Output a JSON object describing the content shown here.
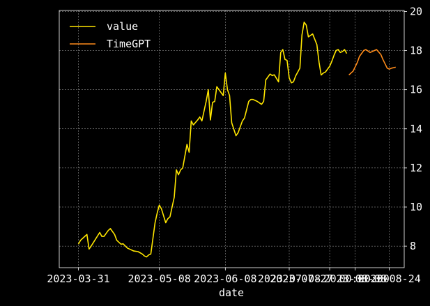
{
  "chart_data": {
    "type": "line",
    "title": "",
    "xlabel": "date",
    "ylabel": "",
    "xlim": [
      "2023-03-22",
      "2023-08-31"
    ],
    "ylim": [
      6.9,
      20.05
    ],
    "x_ticks": [
      "2023-03-31",
      "2023-05-08",
      "2023-06-08",
      "2023-07-08",
      "2023-07-27",
      "2023-08-08",
      "2023-08-24"
    ],
    "x_tick_labels": [
      "2023-03-31",
      "2023-05-08",
      "2023-06-08",
      "2023-07-08",
      "2023-07-27 00:00:00",
      "2023-08-08",
      "2023-08-24"
    ],
    "y_ticks": [
      8,
      10,
      12,
      14,
      16,
      18,
      20
    ],
    "grid": true,
    "legend_position": "top-left",
    "background": "#000000",
    "series": [
      {
        "name": "value",
        "color": "#ffe600",
        "x": [
          "2023-03-31",
          "2023-04-01",
          "2023-04-03",
          "2023-04-04",
          "2023-04-05",
          "2023-04-06",
          "2023-04-08",
          "2023-04-10",
          "2023-04-11",
          "2023-04-12",
          "2023-04-14",
          "2023-04-15",
          "2023-04-17",
          "2023-04-18",
          "2023-04-20",
          "2023-04-21",
          "2023-04-23",
          "2023-04-24",
          "2023-04-26",
          "2023-04-28",
          "2023-04-30",
          "2023-05-01",
          "2023-05-02",
          "2023-05-03",
          "2023-05-04",
          "2023-05-06",
          "2023-05-07",
          "2023-05-08",
          "2023-05-09",
          "2023-05-11",
          "2023-05-12",
          "2023-05-13",
          "2023-05-15",
          "2023-05-16",
          "2023-05-17",
          "2023-05-18",
          "2023-05-19",
          "2023-05-21",
          "2023-05-22",
          "2023-05-23",
          "2023-05-24",
          "2023-05-26",
          "2023-05-27",
          "2023-05-28",
          "2023-05-30",
          "2023-05-31",
          "2023-06-01",
          "2023-06-02",
          "2023-06-03",
          "2023-06-04",
          "2023-06-05",
          "2023-06-07",
          "2023-06-08",
          "2023-06-09",
          "2023-06-10",
          "2023-06-11",
          "2023-06-13",
          "2023-06-14",
          "2023-06-15",
          "2023-06-16",
          "2023-06-17",
          "2023-06-19",
          "2023-06-20",
          "2023-06-21",
          "2023-06-23",
          "2023-06-25",
          "2023-06-26",
          "2023-06-27",
          "2023-06-29",
          "2023-06-30",
          "2023-07-01",
          "2023-07-03",
          "2023-07-04",
          "2023-07-05",
          "2023-07-06",
          "2023-07-07",
          "2023-07-08",
          "2023-07-09",
          "2023-07-10",
          "2023-07-11",
          "2023-07-13",
          "2023-07-14",
          "2023-07-15",
          "2023-07-16",
          "2023-07-17",
          "2023-07-19",
          "2023-07-21",
          "2023-07-22",
          "2023-07-23",
          "2023-07-24",
          "2023-07-25",
          "2023-07-27",
          "2023-07-28",
          "2023-07-29",
          "2023-07-30",
          "2023-07-31",
          "2023-08-01",
          "2023-08-02",
          "2023-08-03",
          "2023-08-04"
        ],
        "y": [
          8.1,
          8.3,
          8.5,
          8.6,
          7.85,
          8.0,
          8.35,
          8.7,
          8.5,
          8.5,
          8.8,
          8.9,
          8.6,
          8.3,
          8.1,
          8.12,
          7.9,
          7.85,
          7.75,
          7.72,
          7.6,
          7.5,
          7.45,
          7.55,
          7.6,
          9.2,
          9.7,
          10.1,
          9.9,
          9.2,
          9.4,
          9.5,
          10.5,
          11.9,
          11.65,
          11.9,
          12.0,
          13.2,
          12.8,
          14.4,
          14.2,
          14.45,
          14.6,
          14.4,
          15.4,
          16.0,
          14.45,
          15.35,
          15.4,
          16.15,
          16.0,
          15.7,
          16.85,
          16.0,
          15.7,
          14.3,
          13.65,
          13.8,
          14.1,
          14.4,
          14.55,
          15.4,
          15.5,
          15.5,
          15.4,
          15.25,
          15.4,
          16.5,
          16.8,
          16.72,
          16.76,
          16.4,
          17.9,
          18.05,
          17.55,
          17.5,
          16.6,
          16.35,
          16.4,
          16.7,
          17.1,
          18.8,
          19.45,
          19.3,
          18.7,
          18.85,
          18.3,
          17.4,
          16.75,
          16.85,
          16.9,
          17.2,
          17.45,
          17.75,
          18.0,
          18.05,
          17.9,
          17.95,
          18.05,
          17.85
        ]
      },
      {
        "name": "TimeGPT",
        "color": "#ff8c1a",
        "x": [
          "2023-08-05",
          "2023-08-06",
          "2023-08-07",
          "2023-08-09",
          "2023-08-10",
          "2023-08-12",
          "2023-08-13",
          "2023-08-15",
          "2023-08-16",
          "2023-08-18",
          "2023-08-20",
          "2023-08-21",
          "2023-08-23",
          "2023-08-24",
          "2023-08-25",
          "2023-08-27"
        ],
        "y": [
          16.75,
          16.85,
          16.95,
          17.4,
          17.7,
          18.0,
          18.05,
          17.9,
          17.95,
          18.05,
          17.8,
          17.55,
          17.1,
          17.05,
          17.1,
          17.15
        ]
      }
    ]
  }
}
